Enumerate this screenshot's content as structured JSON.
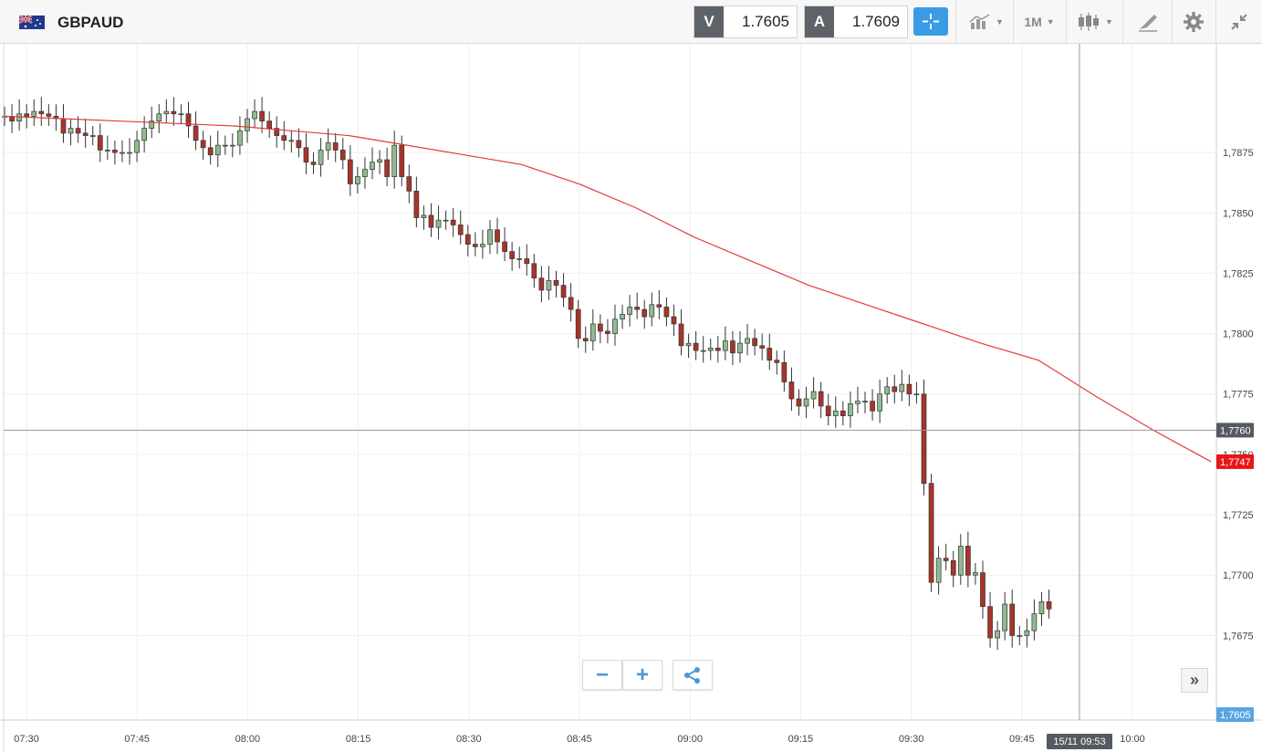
{
  "header": {
    "symbol": "GBPAUD",
    "sell_label": "V",
    "sell_price": "1.7605",
    "buy_label": "A",
    "buy_price": "1.7609",
    "timeframe": "1M",
    "icons": [
      "crosshair-icon",
      "indicators-icon",
      "timeframe-selector",
      "candlestick-icon",
      "draw-icon",
      "gear-icon",
      "collapse-icon"
    ]
  },
  "chart_data": {
    "type": "candlestick",
    "symbol": "GBPAUD",
    "interval": "1 minute",
    "x_ticks": [
      "07:30",
      "07:45",
      "08:00",
      "08:15",
      "08:30",
      "08:45",
      "09:00",
      "09:15",
      "09:30",
      "09:45",
      "10:00"
    ],
    "y_ticks": [
      "1,7875",
      "1,7850",
      "1,7825",
      "1,7800",
      "1,7775",
      "1,7750",
      "1,7725",
      "1,7700",
      "1,7675"
    ],
    "ylim": [
      1.764,
      1.792
    ],
    "series": [
      {
        "type": "candlestick",
        "close": [
          1.789,
          1.7888,
          1.7891,
          1.789,
          1.7892,
          1.7891,
          1.789,
          1.7889,
          1.7883,
          1.7885,
          1.7883,
          1.7882,
          1.7882,
          1.7876,
          1.7876,
          1.7875,
          1.7875,
          1.7875,
          1.788,
          1.7885,
          1.7888,
          1.7891,
          1.7892,
          1.7891,
          1.7891,
          1.7886,
          1.788,
          1.7877,
          1.7874,
          1.7878,
          1.7878,
          1.7878,
          1.7884,
          1.7889,
          1.7892,
          1.7888,
          1.7885,
          1.7882,
          1.788,
          1.788,
          1.7877,
          1.7871,
          1.787,
          1.7876,
          1.7879,
          1.7876,
          1.7872,
          1.7862,
          1.7865,
          1.7868,
          1.7871,
          1.7872,
          1.7865,
          1.7878,
          1.7865,
          1.7859,
          1.7848,
          1.7849,
          1.7844,
          1.7847,
          1.7847,
          1.7845,
          1.7841,
          1.7837,
          1.7836,
          1.7837,
          1.7843,
          1.7838,
          1.7834,
          1.7831,
          1.7831,
          1.7829,
          1.7823,
          1.7818,
          1.7822,
          1.782,
          1.7815,
          1.781,
          1.7798,
          1.7797,
          1.7804,
          1.7801,
          1.78,
          1.7806,
          1.7808,
          1.7811,
          1.781,
          1.7807,
          1.7812,
          1.7811,
          1.7807,
          1.7804,
          1.7795,
          1.7796,
          1.7793,
          1.7793,
          1.7794,
          1.7793,
          1.7797,
          1.7792,
          1.7796,
          1.7798,
          1.7795,
          1.7794,
          1.7789,
          1.7788,
          1.778,
          1.7773,
          1.777,
          1.7773,
          1.7776,
          1.777,
          1.7766,
          1.7768,
          1.7766,
          1.7771,
          1.7772,
          1.7772,
          1.7768,
          1.7775,
          1.7778,
          1.7776,
          1.7779,
          1.7775,
          1.7775,
          1.7738,
          1.7697,
          1.7707,
          1.7706,
          1.77,
          1.7712,
          1.77,
          1.7701,
          1.7687,
          1.7674,
          1.7677,
          1.7688,
          1.7675,
          1.7675,
          1.7677,
          1.7684,
          1.7689,
          1.7686
        ]
      }
    ],
    "open": [
      1.789,
      1.789,
      1.7888,
      1.7891,
      1.789,
      1.7892,
      1.7891,
      1.789,
      1.7889,
      1.7883,
      1.7885,
      1.7883,
      1.7882,
      1.7882,
      1.7876,
      1.7876,
      1.7875,
      1.7875,
      1.7875,
      1.788,
      1.7885,
      1.7888,
      1.7891,
      1.7892,
      1.7891,
      1.7891,
      1.7886,
      1.788,
      1.7877,
      1.7874,
      1.7878,
      1.7878,
      1.7878,
      1.7884,
      1.7889,
      1.7892,
      1.7888,
      1.7885,
      1.7882,
      1.788,
      1.788,
      1.7877,
      1.7871,
      1.787,
      1.7876,
      1.7879,
      1.7876,
      1.7872,
      1.7862,
      1.7865,
      1.7868,
      1.7871,
      1.7872,
      1.7865,
      1.7878,
      1.7865,
      1.7859,
      1.7848,
      1.7849,
      1.7844,
      1.7847,
      1.7847,
      1.7845,
      1.7841,
      1.7837,
      1.7836,
      1.7837,
      1.7843,
      1.7838,
      1.7834,
      1.7831,
      1.7831,
      1.7829,
      1.7823,
      1.7818,
      1.7822,
      1.782,
      1.7815,
      1.781,
      1.7798,
      1.7797,
      1.7804,
      1.7801,
      1.78,
      1.7806,
      1.7808,
      1.7811,
      1.781,
      1.7807,
      1.7812,
      1.7811,
      1.7807,
      1.7804,
      1.7795,
      1.7796,
      1.7793,
      1.7793,
      1.7794,
      1.7793,
      1.7797,
      1.7792,
      1.7796,
      1.7798,
      1.7795,
      1.7794,
      1.7789,
      1.7788,
      1.778,
      1.7773,
      1.777,
      1.7773,
      1.7776,
      1.777,
      1.7766,
      1.7768,
      1.7766,
      1.7771,
      1.7772,
      1.7772,
      1.7768,
      1.7775,
      1.7778,
      1.7776,
      1.7779,
      1.7775,
      1.7775,
      1.7738,
      1.7697,
      1.7707,
      1.7706,
      1.77,
      1.7712,
      1.77,
      1.7701,
      1.7687,
      1.7674,
      1.7677,
      1.7688,
      1.7675,
      1.7675,
      1.7677,
      1.7684,
      1.7689
    ],
    "moving_average": [
      1.789,
      1.7889,
      1.7888,
      1.7887,
      1.7886,
      1.7884,
      1.7882,
      1.7878,
      1.7874,
      1.787,
      1.7862,
      1.7852,
      1.784,
      1.783,
      1.782,
      1.7812,
      1.7804,
      1.7796,
      1.7789,
      1.7774,
      1.776,
      1.7747
    ],
    "last_price_label": "1,7747",
    "crosshair_price_label": "1,7760",
    "current_price_label": "1,7605",
    "crosshair_time_label": "15/11 09:53"
  },
  "controls": {
    "zoom_out": "−",
    "zoom_in": "+",
    "share": "share-icon",
    "scroll_right": "»"
  },
  "colors": {
    "up": "#8fbc8f",
    "down": "#a8342a",
    "ma": "#e23a3a",
    "accent": "#3a9ce5"
  }
}
